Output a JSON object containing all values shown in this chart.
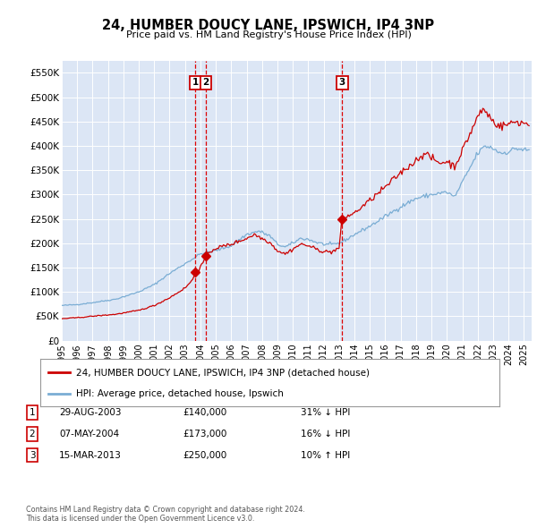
{
  "title": "24, HUMBER DOUCY LANE, IPSWICH, IP4 3NP",
  "subtitle": "Price paid vs. HM Land Registry's House Price Index (HPI)",
  "background_color": "#ffffff",
  "plot_bg_color": "#dce6f5",
  "grid_color": "#ffffff",
  "ylabel_ticks": [
    "£0",
    "£50K",
    "£100K",
    "£150K",
    "£200K",
    "£250K",
    "£300K",
    "£350K",
    "£400K",
    "£450K",
    "£500K",
    "£550K"
  ],
  "ytick_values": [
    0,
    50000,
    100000,
    150000,
    200000,
    250000,
    300000,
    350000,
    400000,
    450000,
    500000,
    550000
  ],
  "hpi_color": "#7aadd4",
  "price_color": "#cc0000",
  "sale_marker_color": "#cc0000",
  "sales": [
    {
      "date_num": 2003.66,
      "price": 140000,
      "label": "1"
    },
    {
      "date_num": 2004.35,
      "price": 173000,
      "label": "2"
    },
    {
      "date_num": 2013.2,
      "price": 250000,
      "label": "3"
    }
  ],
  "vline_color": "#dd0000",
  "legend_red_label": "24, HUMBER DOUCY LANE, IPSWICH, IP4 3NP (detached house)",
  "legend_blue_label": "HPI: Average price, detached house, Ipswich",
  "table_rows": [
    {
      "num": "1",
      "date": "29-AUG-2003",
      "price": "£140,000",
      "hpi": "31% ↓ HPI"
    },
    {
      "num": "2",
      "date": "07-MAY-2004",
      "price": "£173,000",
      "hpi": "16% ↓ HPI"
    },
    {
      "num": "3",
      "date": "15-MAR-2013",
      "price": "£250,000",
      "hpi": "10% ↑ HPI"
    }
  ],
  "footer": "Contains HM Land Registry data © Crown copyright and database right 2024.\nThis data is licensed under the Open Government Licence v3.0.",
  "xmin": 1995.0,
  "xmax": 2025.5,
  "ymin": 0,
  "ymax": 575000
}
